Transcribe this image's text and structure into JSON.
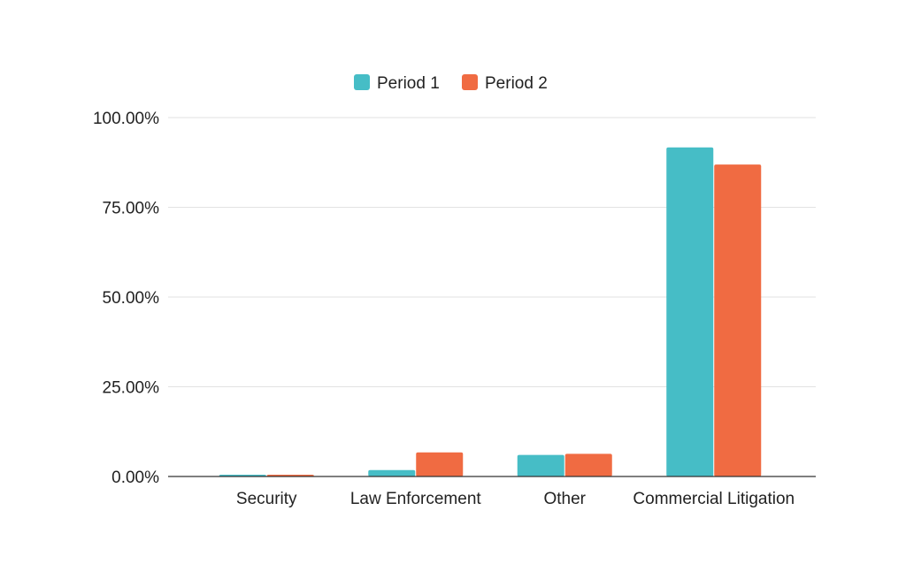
{
  "chart_data": {
    "type": "bar",
    "categories": [
      "Security",
      "Law Enforcement",
      "Other",
      "Commercial Litigation"
    ],
    "series": [
      {
        "name": "Period 1",
        "color": "#46bdc6",
        "values": [
          0.5,
          1.8,
          6.0,
          91.7
        ]
      },
      {
        "name": "Period 2",
        "color": "#f06b42",
        "values": [
          0.5,
          6.7,
          6.3,
          86.9
        ]
      }
    ],
    "yticks": [
      "0.00%",
      "25.00%",
      "50.00%",
      "75.00%",
      "100.00%"
    ],
    "ylim": [
      0,
      100
    ],
    "grid": true,
    "legend_position": "top-center",
    "gridline_color": "#e2e2e2",
    "axis_color": "#333333",
    "text_color": "#222222"
  }
}
